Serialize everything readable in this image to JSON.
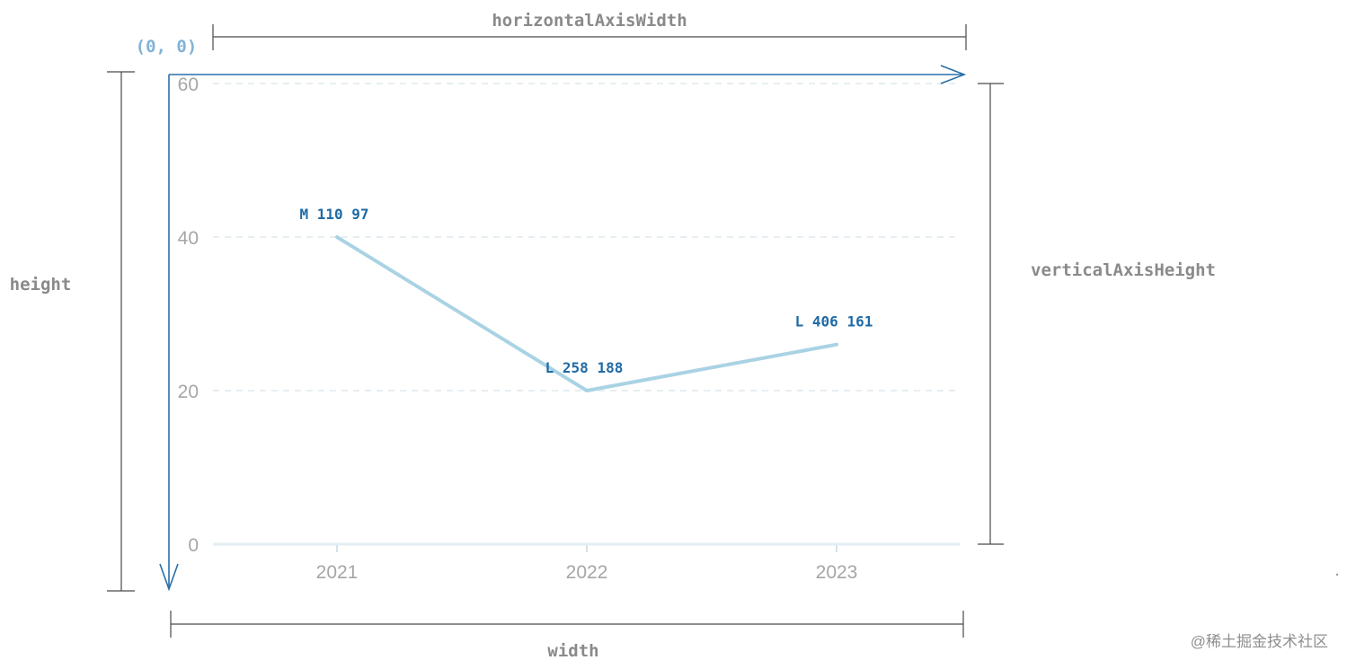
{
  "labels": {
    "origin": "(0, 0)",
    "horizontal_axis_width": "horizontalAxisWidth",
    "vertical_axis_height": "verticalAxisHeight",
    "height": "height",
    "width": "width",
    "watermark": "@稀土掘金技术社区",
    "dot": "."
  },
  "annotations": [
    "M 110 97",
    "L 258 188",
    "L 406 161"
  ],
  "colors": {
    "series_line": "#a9d3e4",
    "annotation": "#1f6aa5",
    "axis_arrow": "#2a6fa8",
    "origin_label": "#7fb2d8",
    "dimension_label": "#8a8a8a"
  },
  "chart_data": {
    "type": "line",
    "categories": [
      "2021",
      "2022",
      "2023"
    ],
    "series": [
      {
        "values": [
          40,
          20,
          26
        ]
      }
    ],
    "yticks": [
      "0",
      "20",
      "40",
      "60"
    ],
    "ylim": [
      0,
      60
    ],
    "grid": true,
    "title": "",
    "xlabel": "",
    "ylabel": ""
  }
}
